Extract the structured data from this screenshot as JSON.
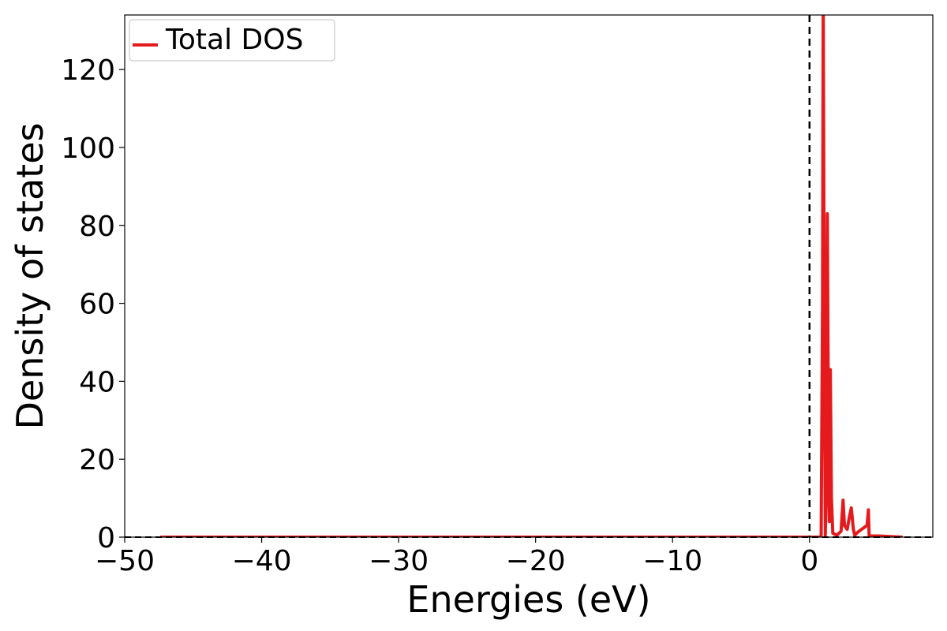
{
  "chart_data": {
    "type": "line",
    "title": "",
    "xlabel": "Energies (eV)",
    "ylabel": "Density of states",
    "xlim": [
      -50,
      9
    ],
    "ylim": [
      0,
      134
    ],
    "xticks": [
      -50,
      -40,
      -30,
      -20,
      -10,
      0
    ],
    "xtick_labels": [
      "−50",
      "−40",
      "−30",
      "−20",
      "−10",
      "0"
    ],
    "yticks": [
      0,
      20,
      40,
      60,
      80,
      100,
      120
    ],
    "ytick_labels": [
      "0",
      "20",
      "40",
      "60",
      "80",
      "100",
      "120"
    ],
    "grid": false,
    "legend": {
      "placement": "top-left"
    },
    "fermi_level": 0,
    "series": [
      {
        "name": "Total DOS",
        "color": "#e41a1c",
        "points": [
          [
            -47.4,
            0
          ],
          [
            -20,
            0
          ],
          [
            -5,
            0
          ],
          [
            0.8,
            0
          ],
          [
            0.85,
            0.5
          ],
          [
            0.95,
            60
          ],
          [
            1.0,
            140
          ],
          [
            1.08,
            50
          ],
          [
            1.15,
            0.5
          ],
          [
            1.22,
            10
          ],
          [
            1.3,
            83
          ],
          [
            1.38,
            30
          ],
          [
            1.45,
            4
          ],
          [
            1.52,
            43
          ],
          [
            1.6,
            10
          ],
          [
            1.7,
            1
          ],
          [
            2.0,
            0.5
          ],
          [
            2.3,
            1.5
          ],
          [
            2.45,
            9.5
          ],
          [
            2.55,
            3
          ],
          [
            2.75,
            2
          ],
          [
            2.9,
            5
          ],
          [
            3.05,
            7.5
          ],
          [
            3.2,
            2
          ],
          [
            3.3,
            0.5
          ],
          [
            3.6,
            1.5
          ],
          [
            4.0,
            2.5
          ],
          [
            4.2,
            3
          ],
          [
            4.3,
            7
          ],
          [
            4.35,
            0.5
          ],
          [
            4.5,
            0.3
          ],
          [
            5,
            0.3
          ],
          [
            6.8,
            0
          ]
        ]
      }
    ]
  }
}
